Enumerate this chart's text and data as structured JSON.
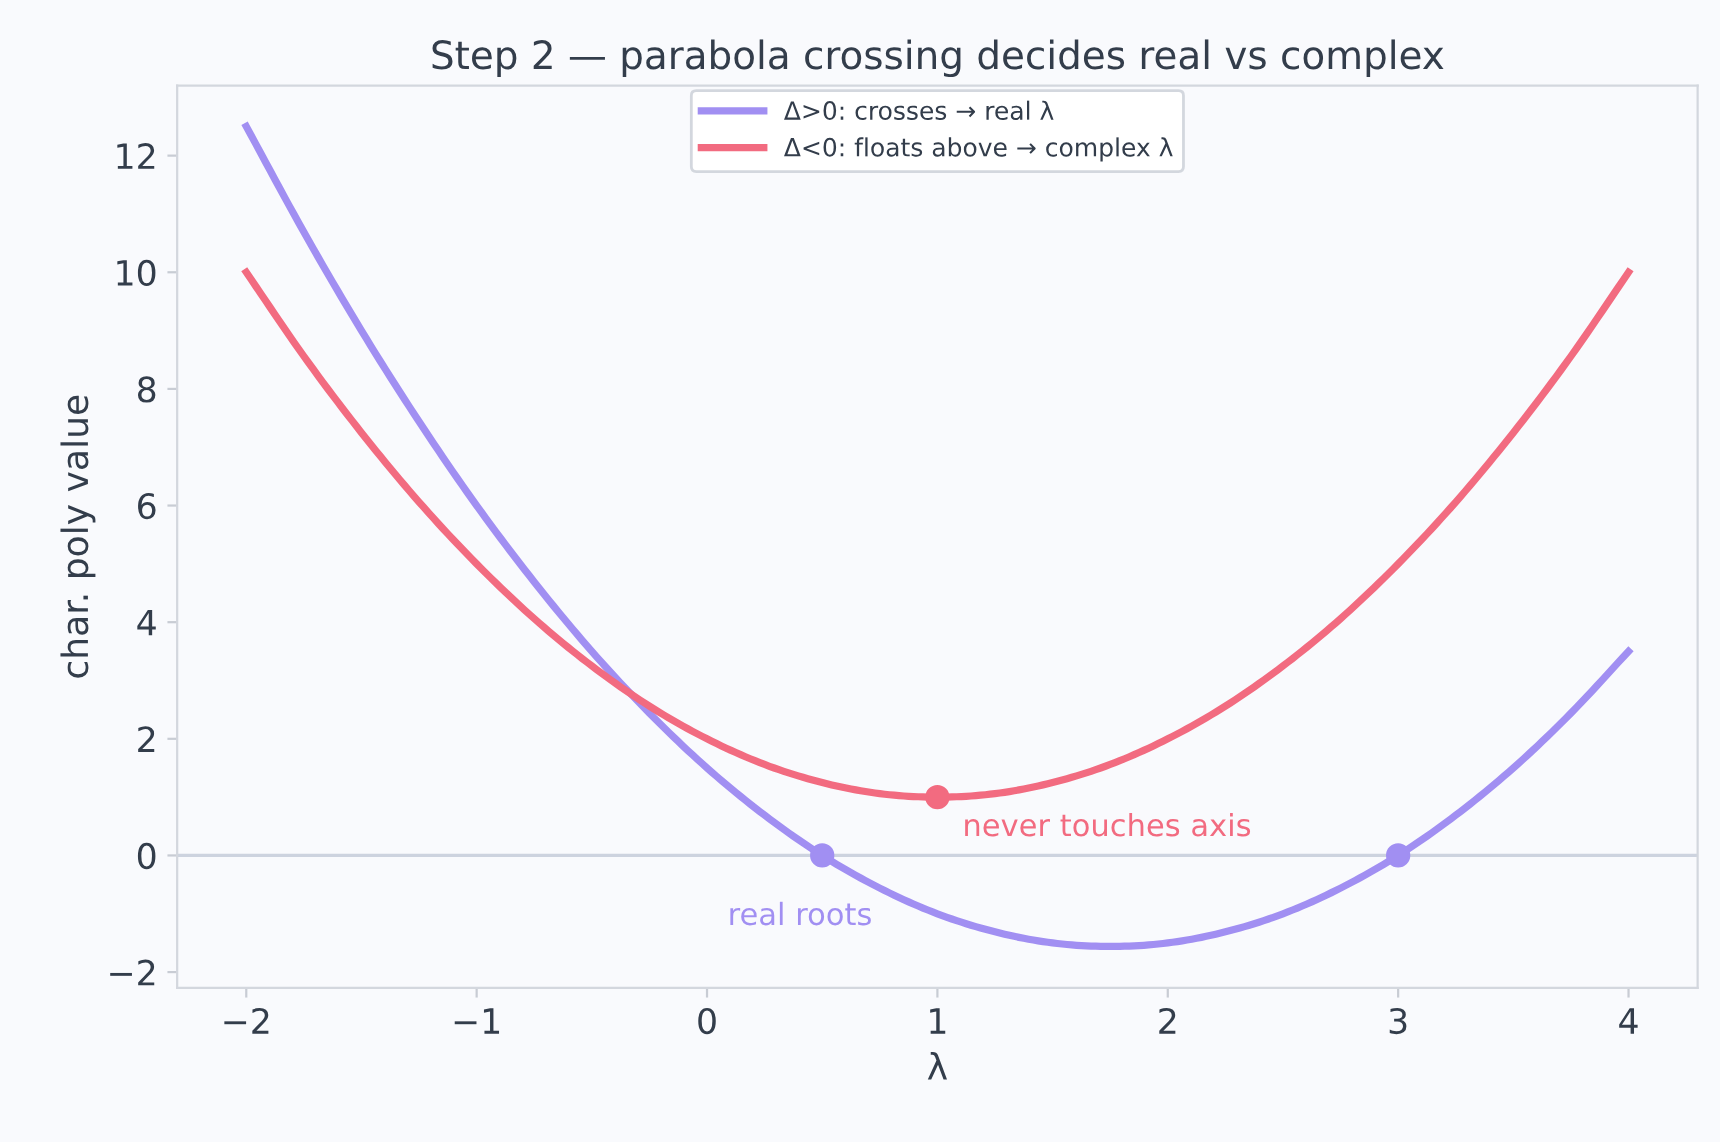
{
  "chart_data": {
    "type": "line",
    "title": "Step 2 — parabola crossing decides real vs complex",
    "xlabel": "λ",
    "ylabel": "char. poly value",
    "x": [
      -2,
      -1.75,
      -1.5,
      -1.25,
      -1,
      -0.75,
      -0.5,
      -0.25,
      0,
      0.25,
      0.5,
      0.75,
      1,
      1.25,
      1.5,
      1.75,
      2,
      2.25,
      2.5,
      2.75,
      3,
      3.25,
      3.5,
      3.75,
      4
    ],
    "series": [
      {
        "name": "Δ>0: crosses → real λ",
        "color": "#a18ff2",
        "values": [
          12.5,
          10.69,
          9,
          7.44,
          6,
          4.69,
          3.5,
          2.44,
          1.5,
          0.69,
          0,
          -0.56,
          -1,
          -1.31,
          -1.5,
          -1.56,
          -1.5,
          -1.31,
          -1,
          -0.56,
          0,
          0.69,
          1.5,
          2.44,
          3.5
        ]
      },
      {
        "name": "Δ<0: floats above → complex λ",
        "color": "#f26b80",
        "values": [
          10,
          8.56,
          7.25,
          6.06,
          5,
          4.06,
          3.25,
          2.56,
          2,
          1.56,
          1.25,
          1.06,
          1,
          1.06,
          1.25,
          1.56,
          2,
          2.56,
          3.25,
          4.06,
          5,
          6.06,
          7.25,
          8.56,
          10
        ]
      },
      {
        "type": "scatter",
        "color": "#a18ff2",
        "x": [
          0.5,
          3
        ],
        "values": [
          0,
          0
        ]
      },
      {
        "type": "scatter",
        "color": "#f26b80",
        "x": [
          1
        ],
        "values": [
          1
        ]
      }
    ],
    "annotations": [
      {
        "text": "real roots",
        "x": 0.5,
        "y": 0
      },
      {
        "text": "never touches axis",
        "x": 1,
        "y": 1
      }
    ],
    "ref_lines": [
      {
        "axis": "y",
        "value": 0,
        "color": "#cdd3df"
      }
    ],
    "xlim": [
      -2.3,
      4.3
    ],
    "ylim": [
      -2.27,
      13.2
    ],
    "xticks": [
      -2,
      -1,
      0,
      1,
      2,
      3,
      4
    ],
    "yticks": [
      -2,
      0,
      2,
      4,
      6,
      8,
      10,
      12
    ],
    "grid": false,
    "legend": "top",
    "line_style": "solid"
  }
}
